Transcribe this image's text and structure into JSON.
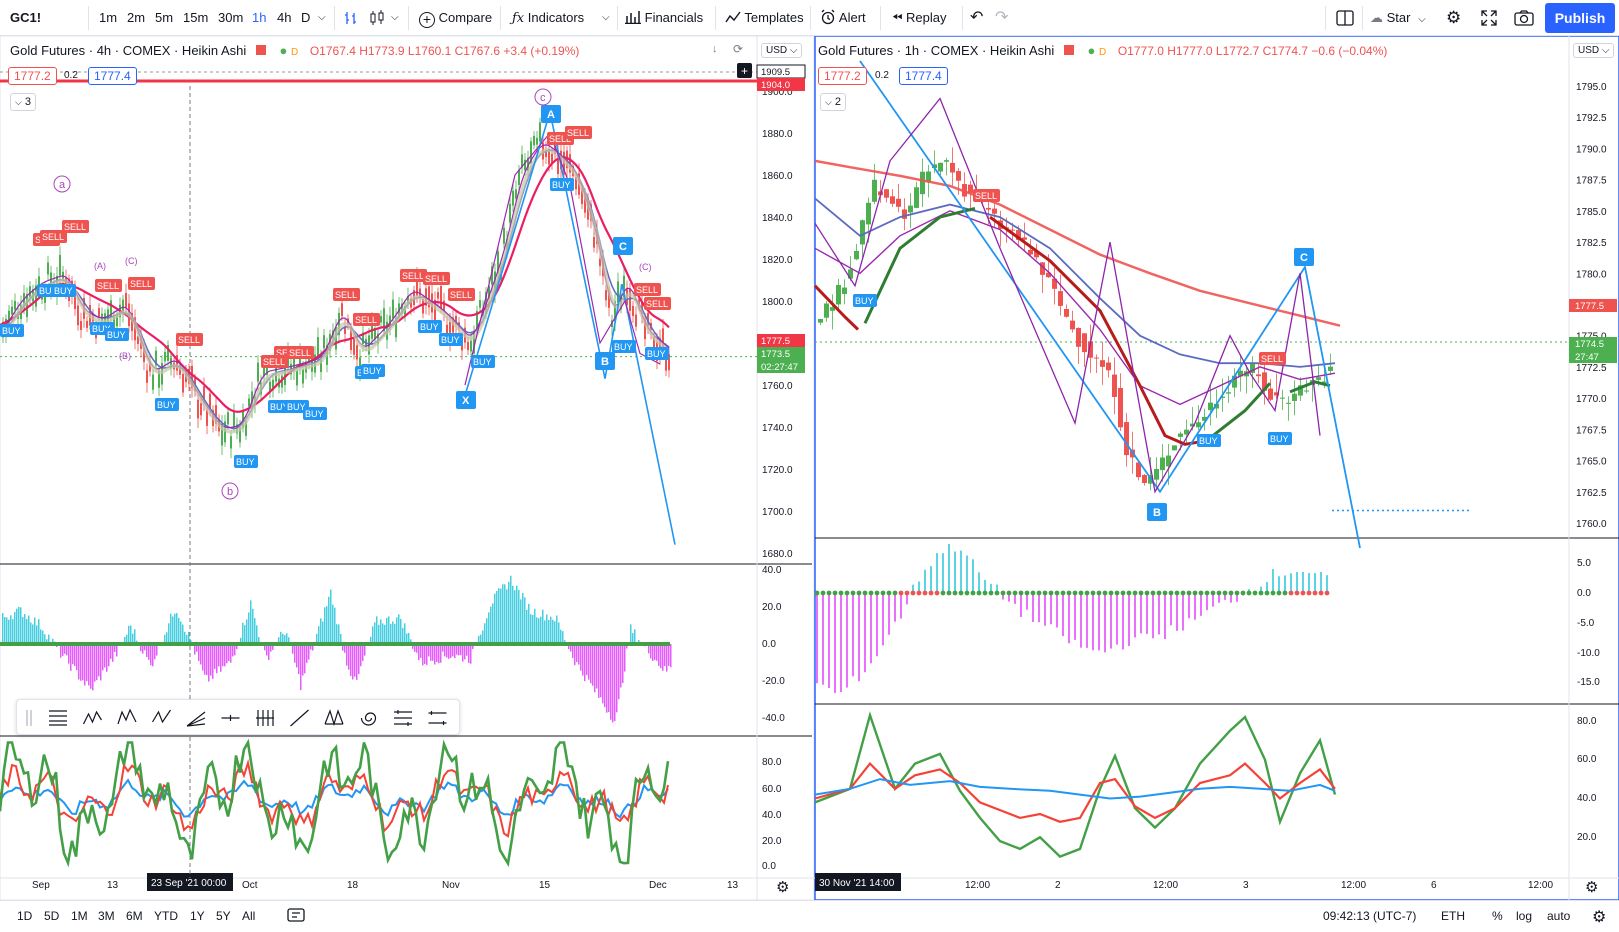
{
  "toolbar": {
    "symbol": "GC1!",
    "intervals": [
      "1m",
      "2m",
      "5m",
      "15m",
      "30m",
      "1h",
      "4h",
      "D"
    ],
    "active_interval": "1h",
    "compare": "Compare",
    "indicators": "Indicators",
    "financials": "Financials",
    "templates": "Templates",
    "alert": "Alert",
    "replay": "Replay",
    "star": "Star",
    "publish": "Publish",
    "icons": [
      "bar-style-icon",
      "candle-style-icon",
      "plus-circle-icon",
      "fx-icon",
      "financials-icon",
      "templates-icon",
      "alert-icon",
      "replay-icon",
      "undo-icon",
      "redo-icon",
      "layout-icon",
      "cloud-icon",
      "settings-icon",
      "fullscreen-icon",
      "camera-icon"
    ]
  },
  "left_chart": {
    "title": "Gold Futures · 4h · COMEX · Heikin Ashi",
    "ohlc": "O1767.4 H1773.9 L1760.1 C1767.6 +3.4 (+0.19%)",
    "bid": "1777.2",
    "spread": "0.2",
    "ask": "1777.4",
    "indicator_count": "3",
    "currency": "USD",
    "price_axis": [
      "1900.0",
      "1880.0",
      "1860.0",
      "1840.0",
      "1820.0",
      "1800.0",
      "1780.0",
      "1760.0",
      "1740.0",
      "1720.0",
      "1700.0",
      "1680.0"
    ],
    "price_labels": {
      "top": "1909.5",
      "red_line": "1904.0",
      "current": "1777.5",
      "last": "1773.5",
      "countdown": "02:27:47"
    },
    "osc_axis": [
      "40.0",
      "20.0",
      "0.0",
      "-20.0",
      "-40.0"
    ],
    "rsi_axis": [
      "80.0",
      "60.0",
      "40.0",
      "20.0",
      "0.0"
    ],
    "time_axis": [
      "Sep",
      "13",
      "Oct",
      "18",
      "Nov",
      "15",
      "Dec",
      "13"
    ],
    "crosshair_time": "23 Sep '21   00:00",
    "wave_labels": [
      "a",
      "b",
      "c",
      "(A)",
      "(B)",
      "(C)",
      "(C)"
    ],
    "pattern_points": [
      "A",
      "B",
      "C",
      "X"
    ],
    "signals": {
      "sell": "SELL",
      "buy": "BUY"
    }
  },
  "right_chart": {
    "title": "Gold Futures · 1h · COMEX · Heikin Ashi",
    "ohlc": "O1777.0 H1777.0 L1772.7 C1774.7 −0.6 (−0.04%)",
    "bid": "1777.2",
    "spread": "0.2",
    "ask": "1777.4",
    "indicator_count": "2",
    "currency": "USD",
    "price_axis": [
      "1795.0",
      "1792.5",
      "1790.0",
      "1787.5",
      "1785.0",
      "1782.5",
      "1780.0",
      "1777.5",
      "1775.0",
      "1772.5",
      "1770.0",
      "1767.5",
      "1765.0",
      "1762.5",
      "1760.0"
    ],
    "price_labels": {
      "current": "1777.5",
      "last": "1774.5",
      "countdown": "27:47"
    },
    "osc_axis": [
      "5.0",
      "0.0",
      "-5.0",
      "-10.0",
      "-15.0"
    ],
    "rsi_axis": [
      "80.0",
      "60.0",
      "40.0",
      "20.0"
    ],
    "time_axis": [
      "12:00",
      "2",
      "12:00",
      "3",
      "12:00",
      "6",
      "12:00"
    ],
    "crosshair_time": "30 Nov '21   14:00",
    "pattern_points": [
      "B",
      "C",
      "B"
    ],
    "signals": {
      "sell": "SELL",
      "buy": "BUY"
    }
  },
  "drawing_toolbar": {
    "icons": [
      "drag-handle-icon",
      "lines-icon",
      "abcd-pattern-icon",
      "elliott-wave-icon",
      "xabcd-icon",
      "fib-fan-icon",
      "horizontal-ray-icon",
      "fib-timezone-icon",
      "trendline-icon",
      "xabcd-pattern-icon",
      "spiral-icon",
      "regression-icon",
      "parallel-channel-icon"
    ]
  },
  "bottom": {
    "ranges": [
      "1D",
      "5D",
      "1M",
      "3M",
      "6M",
      "YTD",
      "1Y",
      "5Y",
      "All"
    ],
    "clock": "09:42:13 (UTC-7)",
    "session": "ETH",
    "percent": "%",
    "log": "log",
    "auto": "auto"
  },
  "colors": {
    "accent": "#2962ff",
    "up": "#4caf50",
    "down": "#ef5350",
    "ema": "#ef5350",
    "sell_badge": "#ef5350",
    "buy_badge": "#2196f3",
    "osc_pos": "#26c6da",
    "osc_neg": "#e040fb",
    "rsi_green": "#43a047",
    "rsi_red": "#f44336",
    "rsi_blue": "#2196f3"
  }
}
